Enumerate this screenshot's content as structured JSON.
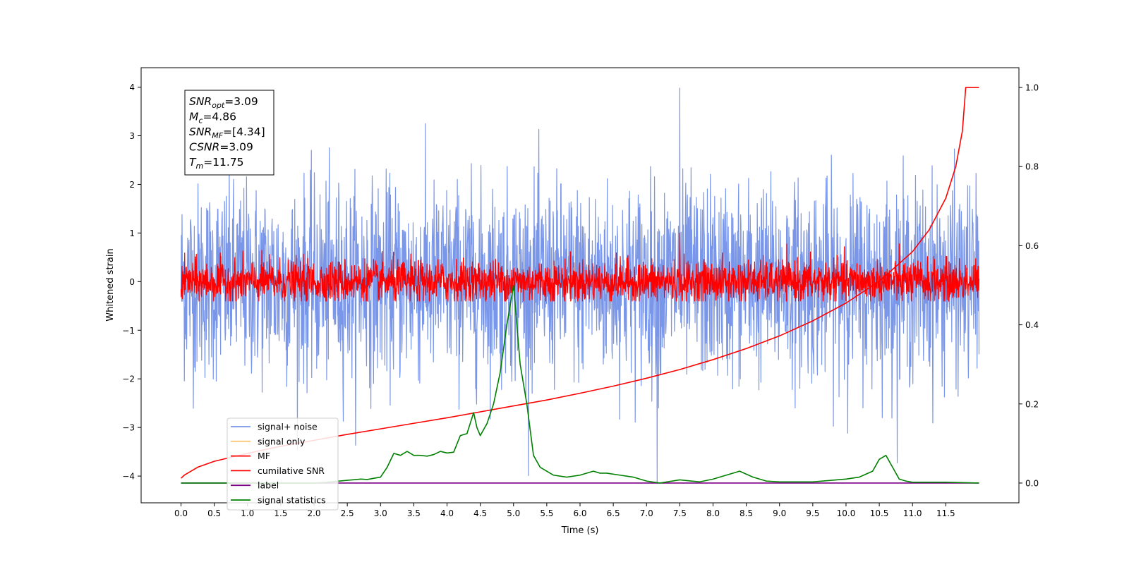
{
  "chart_data": {
    "type": "line",
    "xlabel": "Time (s)",
    "ylabel": "Whitened strain",
    "xlim": [
      -0.6,
      12.6
    ],
    "ylim": [
      -4.55,
      4.4
    ],
    "ylim_right": [
      -0.05,
      1.05
    ],
    "x_ticks": [
      "0.0",
      "0.5",
      "1.0",
      "1.5",
      "2.0",
      "2.5",
      "3.0",
      "3.5",
      "4.0",
      "4.5",
      "5.0",
      "5.5",
      "6.0",
      "6.5",
      "7.0",
      "7.5",
      "8.0",
      "8.5",
      "9.0",
      "9.5",
      "10.0",
      "10.5",
      "11.0",
      "11.5"
    ],
    "y_ticks": [
      "4",
      "3",
      "2",
      "1",
      "0",
      "−1",
      "−2",
      "−3",
      "−4"
    ],
    "y_ticks_right": [
      "1.0",
      "0.8",
      "0.6",
      "0.4",
      "0.2",
      "0.0"
    ],
    "annotation": {
      "lines": [
        {
          "var": "SNR",
          "sub": "opt",
          "value": "=3.09"
        },
        {
          "var": "M",
          "sub": "c",
          "value": "=4.86"
        },
        {
          "var": "SNR",
          "sub": "MF",
          "value": "=[4.34]"
        },
        {
          "var": "CSNR",
          "sub": "",
          "value": "=3.09"
        },
        {
          "var": "T",
          "sub": "m",
          "value": "=11.75"
        }
      ]
    },
    "legend": {
      "placement": "lower-left",
      "entries": [
        {
          "label": "signal+ noise",
          "color": "#7a96e8"
        },
        {
          "label": "signal only",
          "color": "#fcc878"
        },
        {
          "label": "MF",
          "color": "#ff0000"
        },
        {
          "label": "cumilative SNR",
          "color": "#ff0000"
        },
        {
          "label": "label",
          "color": "#7b0085"
        },
        {
          "label": "signal statistics",
          "color": "#008000"
        }
      ]
    },
    "series": [
      {
        "name": "signal+ noise",
        "axis": "left",
        "style": "noise",
        "color": "#7a96e8",
        "x_range": [
          0.0,
          12.0
        ],
        "mean": 0.0,
        "band": 1.6,
        "max_peak": 3.98,
        "min_peak": -4.15
      },
      {
        "name": "MF",
        "axis": "left",
        "style": "noise",
        "color": "#ff0000",
        "x_range": [
          0.0,
          12.0
        ],
        "mean": 0.0,
        "band": 0.35,
        "max_peak": 1.0,
        "min_peak": -0.4
      },
      {
        "name": "cumilative SNR",
        "axis": "right",
        "color": "#ff0000",
        "x": [
          0.0,
          0.05,
          0.25,
          0.5,
          1.0,
          1.5,
          2.0,
          2.5,
          3.0,
          3.5,
          4.0,
          4.5,
          5.0,
          5.5,
          6.0,
          6.5,
          7.0,
          7.5,
          8.0,
          8.5,
          9.0,
          9.5,
          10.0,
          10.5,
          11.0,
          11.25,
          11.5,
          11.65,
          11.75,
          11.8,
          12.0
        ],
        "y": [
          0.012,
          0.02,
          0.04,
          0.055,
          0.075,
          0.093,
          0.108,
          0.123,
          0.137,
          0.151,
          0.165,
          0.18,
          0.195,
          0.21,
          0.227,
          0.245,
          0.265,
          0.287,
          0.312,
          0.34,
          0.372,
          0.41,
          0.455,
          0.51,
          0.585,
          0.64,
          0.72,
          0.8,
          0.89,
          1.0,
          1.0
        ]
      },
      {
        "name": "label",
        "axis": "right",
        "color": "#7b0085",
        "x": [
          0.0,
          12.0
        ],
        "y": [
          0.0,
          0.0
        ]
      },
      {
        "name": "signal statistics",
        "axis": "right",
        "color": "#008000",
        "x": [
          0.0,
          0.5,
          1.0,
          1.5,
          2.0,
          2.2,
          2.5,
          2.7,
          2.8,
          2.9,
          3.0,
          3.1,
          3.2,
          3.3,
          3.4,
          3.5,
          3.6,
          3.7,
          3.8,
          3.9,
          4.0,
          4.1,
          4.2,
          4.3,
          4.4,
          4.45,
          4.5,
          4.6,
          4.7,
          4.8,
          4.9,
          5.0,
          5.1,
          5.2,
          5.3,
          5.4,
          5.5,
          5.6,
          5.8,
          6.0,
          6.2,
          6.3,
          6.4,
          6.6,
          6.8,
          7.0,
          7.2,
          7.5,
          7.8,
          8.0,
          8.2,
          8.4,
          8.6,
          8.8,
          9.0,
          9.5,
          10.0,
          10.2,
          10.4,
          10.5,
          10.6,
          10.7,
          10.8,
          10.9,
          11.0,
          11.5,
          12.0
        ],
        "y": [
          0.0,
          0.0,
          0.0,
          0.0,
          0.0,
          0.002,
          0.007,
          0.01,
          0.009,
          0.012,
          0.015,
          0.04,
          0.075,
          0.07,
          0.08,
          0.07,
          0.07,
          0.068,
          0.072,
          0.08,
          0.076,
          0.078,
          0.12,
          0.125,
          0.178,
          0.14,
          0.12,
          0.15,
          0.2,
          0.28,
          0.4,
          0.5,
          0.3,
          0.2,
          0.07,
          0.04,
          0.03,
          0.02,
          0.015,
          0.02,
          0.03,
          0.025,
          0.025,
          0.02,
          0.015,
          0.005,
          0.0,
          0.008,
          0.003,
          0.01,
          0.02,
          0.03,
          0.015,
          0.005,
          0.003,
          0.003,
          0.01,
          0.015,
          0.03,
          0.06,
          0.07,
          0.04,
          0.01,
          0.005,
          0.002,
          0.002,
          0.0
        ]
      }
    ]
  }
}
